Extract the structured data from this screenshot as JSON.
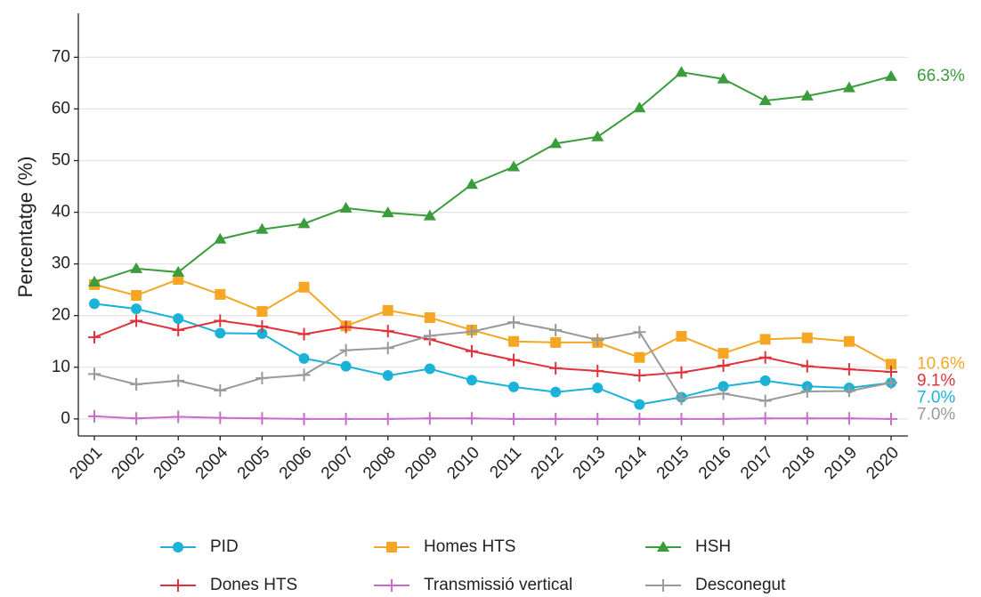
{
  "chart_data": {
    "type": "line",
    "y_label": "Percentatge (%)",
    "categories": [
      "2001",
      "2002",
      "2003",
      "2004",
      "2005",
      "2006",
      "2007",
      "2008",
      "2009",
      "2010",
      "2011",
      "2012",
      "2013",
      "2014",
      "2015",
      "2016",
      "2017",
      "2018",
      "2019",
      "2020"
    ],
    "ylim": [
      -3.3,
      78.5
    ],
    "yticks": [
      0,
      10,
      20,
      30,
      40,
      50,
      60,
      70
    ],
    "grid": true,
    "series": [
      {
        "name": "PID",
        "color": "#1ab2d6",
        "marker": "circle",
        "values": [
          22.3,
          21.3,
          19.4,
          16.6,
          16.5,
          11.7,
          10.2,
          8.4,
          9.7,
          7.5,
          6.2,
          5.2,
          6.0,
          2.8,
          4.2,
          6.3,
          7.4,
          6.3,
          6.0,
          7.0
        ],
        "value_labels": [
          null,
          null,
          null,
          null,
          null,
          null,
          null,
          null,
          null,
          null,
          null,
          null,
          null,
          null,
          null,
          null,
          null,
          null,
          null,
          "7.0%"
        ]
      },
      {
        "name": "Homes HTS",
        "color": "#f5a623",
        "marker": "square",
        "values": [
          26.0,
          23.9,
          27.0,
          24.1,
          20.8,
          25.5,
          18.0,
          21.0,
          19.6,
          17.2,
          15.0,
          14.8,
          14.8,
          11.9,
          16.0,
          12.7,
          15.4,
          15.7,
          15.0,
          10.6
        ],
        "value_labels": [
          null,
          null,
          null,
          null,
          null,
          null,
          null,
          null,
          null,
          null,
          null,
          null,
          null,
          null,
          null,
          null,
          null,
          null,
          null,
          "10.6%"
        ]
      },
      {
        "name": "HSH",
        "color": "#3a9c3a",
        "marker": "triangle",
        "values": [
          26.5,
          29.1,
          28.4,
          34.8,
          36.7,
          37.8,
          40.8,
          39.9,
          39.3,
          45.4,
          48.8,
          53.3,
          54.6,
          60.2,
          67.1,
          65.8,
          61.6,
          62.5,
          64.1,
          66.3
        ],
        "value_labels": [
          null,
          null,
          null,
          null,
          null,
          null,
          null,
          null,
          null,
          null,
          null,
          null,
          null,
          null,
          null,
          null,
          null,
          null,
          null,
          "66.3%"
        ]
      },
      {
        "name": "Dones HTS",
        "color": "#e0323c",
        "marker": "plus",
        "values": [
          15.8,
          19.0,
          17.2,
          19.0,
          17.9,
          16.4,
          17.8,
          17.0,
          15.4,
          13.1,
          11.4,
          9.8,
          9.3,
          8.4,
          9.0,
          10.3,
          11.9,
          10.2,
          9.6,
          9.1
        ],
        "value_labels": [
          null,
          null,
          null,
          null,
          null,
          null,
          null,
          null,
          null,
          null,
          null,
          null,
          null,
          null,
          null,
          null,
          null,
          null,
          null,
          "9.1%"
        ]
      },
      {
        "name": "Transmissió vertical",
        "color": "#c86dc8",
        "marker": "plus",
        "values": [
          0.5,
          0.1,
          0.4,
          0.2,
          0.1,
          0,
          0,
          0,
          0.1,
          0.1,
          0,
          0,
          0,
          0,
          0,
          0,
          0.1,
          0.1,
          0.1,
          0
        ]
      },
      {
        "name": "Desconegut",
        "color": "#999999",
        "marker": "plus",
        "values": [
          8.7,
          6.7,
          7.4,
          5.5,
          7.9,
          8.5,
          13.3,
          13.7,
          16.1,
          16.9,
          18.7,
          17.2,
          15.3,
          16.8,
          3.9,
          4.9,
          3.5,
          5.3,
          5.4,
          7.0
        ],
        "value_labels": [
          null,
          null,
          null,
          null,
          null,
          null,
          null,
          null,
          null,
          null,
          null,
          null,
          null,
          null,
          null,
          null,
          null,
          null,
          null,
          "7.0%"
        ]
      }
    ]
  }
}
